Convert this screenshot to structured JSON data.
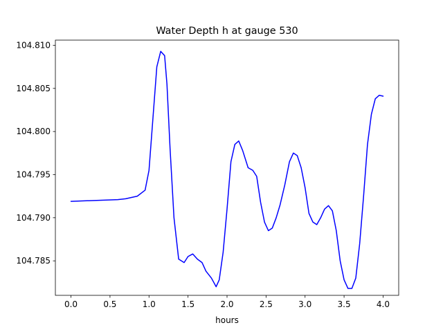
{
  "chart_data": {
    "type": "line",
    "title": "Water Depth h at gauge 530",
    "xlabel": "hours",
    "ylabel": "",
    "xlim": [
      -0.2,
      4.2
    ],
    "ylim": [
      104.781,
      104.8106
    ],
    "grid": false,
    "x_ticks": [
      0.0,
      0.5,
      1.0,
      1.5,
      2.0,
      2.5,
      3.0,
      3.5,
      4.0
    ],
    "x_tick_labels": [
      "0.0",
      "0.5",
      "1.0",
      "1.5",
      "2.0",
      "2.5",
      "3.0",
      "3.5",
      "4.0"
    ],
    "y_ticks": [
      104.785,
      104.79,
      104.795,
      104.8,
      104.805,
      104.81
    ],
    "y_tick_labels": [
      "104.785",
      "104.790",
      "104.795",
      "104.800",
      "104.805",
      "104.810"
    ],
    "series": [
      {
        "color": "#0000ff",
        "x": [
          0.0,
          0.3,
          0.6,
          0.7,
          0.85,
          0.95,
          1.0,
          1.05,
          1.1,
          1.15,
          1.2,
          1.23,
          1.27,
          1.32,
          1.38,
          1.45,
          1.5,
          1.56,
          1.62,
          1.68,
          1.73,
          1.8,
          1.86,
          1.9,
          1.95,
          2.0,
          2.05,
          2.1,
          2.15,
          2.2,
          2.27,
          2.33,
          2.38,
          2.43,
          2.48,
          2.53,
          2.58,
          2.63,
          2.68,
          2.74,
          2.8,
          2.85,
          2.9,
          2.95,
          3.0,
          3.05,
          3.1,
          3.15,
          3.2,
          3.25,
          3.3,
          3.35,
          3.4,
          3.45,
          3.5,
          3.55,
          3.6,
          3.65,
          3.7,
          3.75,
          3.8,
          3.85,
          3.9,
          3.95,
          4.0
        ],
        "y": [
          104.7919,
          104.792,
          104.7921,
          104.7922,
          104.7925,
          104.7932,
          104.7955,
          104.8015,
          104.8075,
          104.8093,
          104.8088,
          104.8055,
          104.798,
          104.79,
          104.7852,
          104.7848,
          104.7855,
          104.7858,
          104.7852,
          104.7848,
          104.7838,
          104.783,
          104.782,
          104.7828,
          104.786,
          104.791,
          104.7965,
          104.7985,
          104.7989,
          104.7978,
          104.7958,
          104.7955,
          104.7948,
          104.7918,
          104.7895,
          104.7885,
          104.7888,
          104.79,
          104.7915,
          104.7938,
          104.7965,
          104.7975,
          104.7972,
          104.7958,
          104.7935,
          104.7905,
          104.7895,
          104.7892,
          104.79,
          104.791,
          104.7914,
          104.7908,
          104.7885,
          104.785,
          104.7828,
          104.7818,
          104.7818,
          104.783,
          104.787,
          104.7925,
          104.7985,
          104.802,
          104.8038,
          104.8042,
          104.8041
        ]
      }
    ]
  }
}
